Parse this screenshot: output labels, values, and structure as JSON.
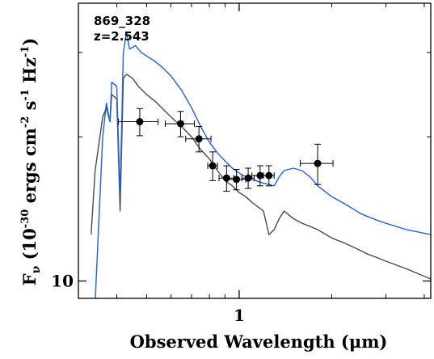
{
  "chart_data": {
    "type": "line",
    "annotations": [
      "869_328",
      "z=2.543"
    ],
    "xlabel": "Observed Wavelength (μm)",
    "ylabel": {
      "base": "F",
      "nu": "ν",
      "rest": " (10",
      "e1": "-30",
      "mid1": " ergs cm",
      "e2": "-2",
      "mid2": " s",
      "e3": "-1",
      "mid3": " Hz",
      "e4": "-1",
      "end": ")"
    },
    "x_scale": "log",
    "y_scale": "log",
    "xlim": [
      0.3,
      4.2
    ],
    "ylim": [
      9.2,
      38
    ],
    "x_tick_labels": [
      {
        "value": 1,
        "label": "1"
      }
    ],
    "y_tick_labels": [
      {
        "value": 10,
        "label": "10"
      }
    ],
    "colors": {
      "blue": "#1f5fe0",
      "gray": "#4a4a4a",
      "points": "#000000"
    },
    "series": [
      {
        "line_color": "gray",
        "x": [
          0.33,
          0.34,
          0.36,
          0.37,
          0.38,
          0.385,
          0.4,
          0.41,
          0.42,
          0.43,
          0.45,
          0.47,
          0.5,
          0.53,
          0.56,
          0.6,
          0.65,
          0.7,
          0.75,
          0.8,
          0.85,
          0.9,
          0.95,
          1.0,
          1.05,
          1.1,
          1.2,
          1.25,
          1.3,
          1.35,
          1.4,
          1.5,
          1.6,
          1.7,
          1.8,
          2.0,
          2.2,
          2.4,
          2.6,
          2.8,
          3.0,
          3.5,
          4.2
        ],
        "y": [
          12.5,
          17.0,
          22.0,
          23.0,
          21.5,
          24.5,
          24.0,
          14.0,
          26.5,
          27.0,
          26.5,
          25.5,
          24.5,
          23.8,
          23.0,
          22.0,
          21.0,
          20.0,
          18.8,
          18.0,
          17.0,
          16.2,
          15.8,
          15.3,
          15.0,
          14.6,
          14.0,
          12.5,
          12.8,
          13.5,
          14.0,
          13.5,
          13.2,
          13.0,
          12.8,
          12.3,
          12.0,
          11.7,
          11.4,
          11.2,
          11.0,
          10.6,
          10.1
        ]
      },
      {
        "line_color": "blue",
        "x": [
          0.34,
          0.36,
          0.37,
          0.38,
          0.385,
          0.4,
          0.41,
          0.42,
          0.43,
          0.44,
          0.46,
          0.48,
          0.5,
          0.53,
          0.56,
          0.6,
          0.65,
          0.7,
          0.75,
          0.8,
          0.85,
          0.9,
          0.95,
          1.0,
          1.05,
          1.1,
          1.2,
          1.3,
          1.35,
          1.4,
          1.5,
          1.6,
          1.7,
          1.8,
          2.0,
          2.2,
          2.5,
          2.8,
          3.0,
          3.5,
          4.2
        ],
        "y": [
          9.0,
          20.0,
          23.5,
          21.5,
          26.0,
          25.5,
          15.0,
          30.0,
          33.0,
          30.5,
          31.0,
          30.0,
          29.5,
          28.8,
          28.0,
          26.8,
          25.0,
          23.0,
          21.0,
          19.5,
          18.5,
          17.8,
          17.2,
          16.8,
          16.5,
          16.3,
          16.0,
          15.8,
          16.5,
          17.0,
          17.2,
          17.0,
          16.5,
          15.8,
          15.0,
          14.5,
          13.8,
          13.4,
          13.2,
          12.8,
          12.5
        ]
      }
    ],
    "points": {
      "x": [
        0.475,
        0.645,
        0.74,
        0.82,
        0.91,
        0.98,
        1.07,
        1.17,
        1.25,
        1.8
      ],
      "y": [
        21.5,
        21.3,
        19.8,
        17.4,
        16.4,
        16.3,
        16.4,
        16.6,
        16.6,
        17.6
      ],
      "xerr": [
        0.07,
        0.07,
        0.07,
        0.03,
        0.05,
        0.07,
        0.05,
        0.07,
        0.05,
        0.22
      ],
      "yerr": [
        1.4,
        1.3,
        1.2,
        1.2,
        1.0,
        0.8,
        0.8,
        0.8,
        0.8,
        1.7
      ]
    }
  }
}
